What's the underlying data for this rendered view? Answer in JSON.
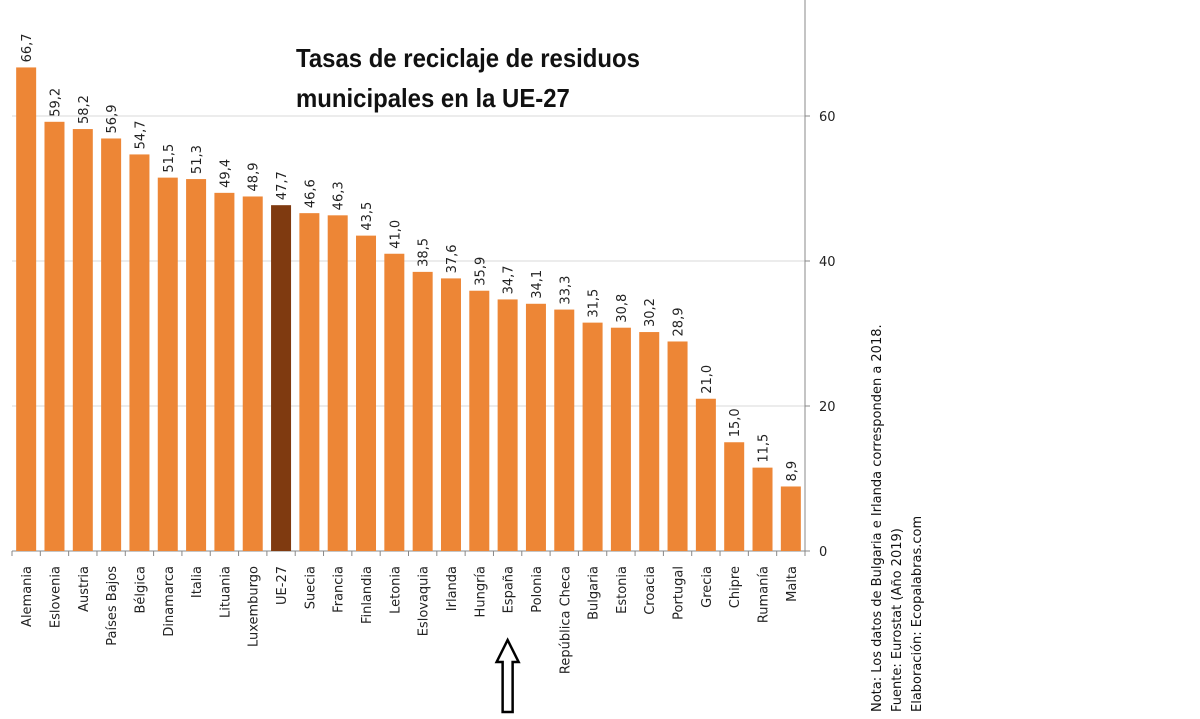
{
  "chart_data": {
    "type": "bar",
    "title": "Tasas de reciclaje de residuos municipales en la UE-27",
    "title_lines": [
      "Tasas de reciclaje de residuos",
      "municipales en la UE-27"
    ],
    "categories": [
      "Alemania",
      "Eslovenia",
      "Austria",
      "Países Bajos",
      "Bélgica",
      "Dinamarca",
      "Italia",
      "Lituania",
      "Luxemburgo",
      "UE-27",
      "Suecia",
      "Francia",
      "Finlandia",
      "Letonia",
      "Eslovaquia",
      "Irlanda",
      "Hungría",
      "España",
      "Polonia",
      "República Checa",
      "Bulgaria",
      "Estonia",
      "Croacia",
      "Portugal",
      "Grecia",
      "Chipre",
      "Rumanía",
      "Malta"
    ],
    "values": [
      66.7,
      59.2,
      58.2,
      56.9,
      54.7,
      51.5,
      51.3,
      49.4,
      48.9,
      47.7,
      46.6,
      46.3,
      43.5,
      41.0,
      38.5,
      37.6,
      35.9,
      34.7,
      34.1,
      33.3,
      31.5,
      30.8,
      30.2,
      28.9,
      21.0,
      15.0,
      11.5,
      8.9
    ],
    "value_labels": [
      "66,7",
      "59,2",
      "58,2",
      "56,9",
      "54,7",
      "51,5",
      "51,3",
      "49,4",
      "48,9",
      "47,7",
      "46,6",
      "46,3",
      "43,5",
      "41,0",
      "38,5",
      "37,6",
      "35,9",
      "34,7",
      "34,1",
      "33,3",
      "31,5",
      "30,8",
      "30,2",
      "28,9",
      "21,0",
      "15,0",
      "11,5",
      "8,9"
    ],
    "highlight_category": "UE-27",
    "arrow_category": "España",
    "ylim": [
      0,
      76
    ],
    "yticks": [
      0,
      20,
      40,
      60
    ],
    "y_axis_side": "right",
    "grid": true,
    "xlabel": "",
    "ylabel": "",
    "colors": {
      "bar": "#ed8636",
      "highlight": "#7f3a10",
      "grid": "#d9d9d9",
      "axis": "#888888"
    }
  },
  "notes": [
    "Nota: Los datos  de Bulgaria e Irlanda corresponden a 2018.",
    "Fuente: Eurostat   (Año 2019)",
    "Elaboración: Ecopalabras.com"
  ]
}
